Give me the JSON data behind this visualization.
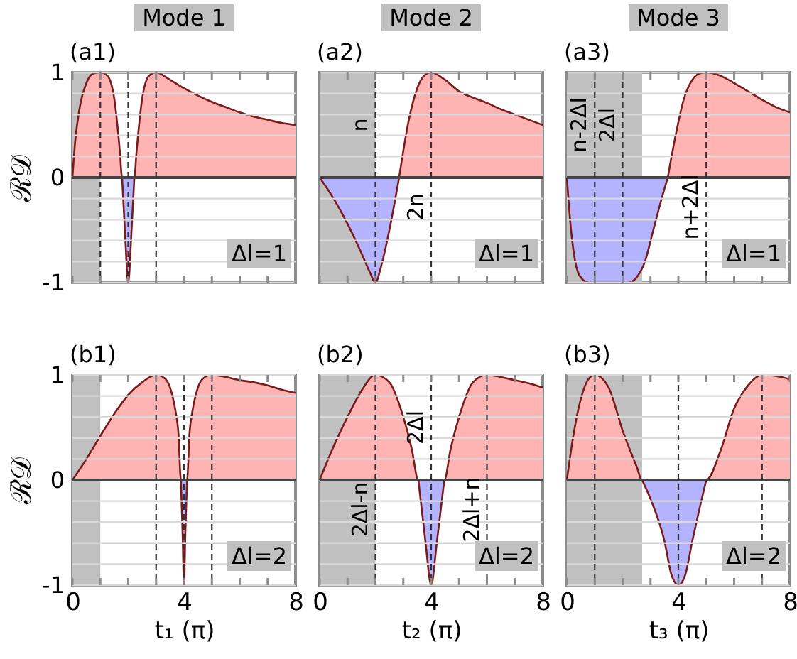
{
  "chart_data": [
    {
      "type": "area",
      "title": "(a1)",
      "subtitle": "Mode 1",
      "ylabel": "ℛ𝒟",
      "tick_labels": "y",
      "grid": "y",
      "xlim": [
        0,
        8
      ],
      "ylim": [
        -1,
        1
      ],
      "xticks": [
        0,
        {
          "value": 1,
          "label": null
        },
        {
          "value": 2,
          "label": null
        },
        {
          "value": 3,
          "label": null
        },
        4,
        {
          "value": 5,
          "label": null
        },
        {
          "value": 6,
          "label": null
        },
        {
          "value": 7,
          "label": null
        },
        8
      ],
      "yticks": [
        -1,
        {
          "value": -0.8,
          "label": null
        },
        {
          "value": -0.6,
          "label": null
        },
        {
          "value": -0.4,
          "label": null
        },
        {
          "value": -0.2,
          "label": null
        },
        0,
        {
          "value": 0.2,
          "label": null
        },
        {
          "value": 0.4,
          "label": null
        },
        {
          "value": 0.6,
          "label": null
        },
        {
          "value": 0.8,
          "label": null
        },
        1
      ],
      "x": [
        0,
        0.1,
        0.25,
        0.5,
        0.75,
        1,
        1.25,
        1.5,
        1.7,
        1.78,
        1.88,
        2,
        2.12,
        2.22,
        2.3,
        2.5,
        2.75,
        3,
        3.5,
        4,
        4.5,
        5,
        5.5,
        6,
        6.5,
        7,
        7.5,
        8
      ],
      "series": [
        {
          "color": "#ffb3b3",
          "values": [
            0,
            0.35,
            0.65,
            0.9,
            0.99,
            1,
            0.97,
            0.75,
            0.25,
            0,
            null,
            null,
            null,
            0,
            0.25,
            0.75,
            0.97,
            1,
            0.93,
            0.85,
            0.78,
            0.72,
            0.67,
            0.62,
            0.58,
            0.55,
            0.52,
            0.5
          ]
        },
        {
          "color": "#b3b3ff",
          "values": [
            null,
            null,
            null,
            null,
            null,
            null,
            null,
            null,
            null,
            0,
            -0.5,
            -1,
            -0.5,
            0,
            null,
            null,
            null,
            null,
            null,
            null,
            null,
            null,
            null,
            null,
            null,
            null,
            null,
            null
          ]
        }
      ],
      "bands": [
        {
          "axis": "x",
          "from": 0,
          "to": 1,
          "color": "#c0c0c0"
        }
      ],
      "ref_lines": [
        {
          "axis": "y",
          "value": 0,
          "color": "#444444",
          "line_style": "solid"
        },
        {
          "axis": "x",
          "value": 1,
          "color": "#333333",
          "line_style": "dashed"
        },
        {
          "axis": "x",
          "value": 2,
          "color": "#333333",
          "line_style": "dashed"
        },
        {
          "axis": "x",
          "value": 3,
          "color": "#333333",
          "line_style": "dashed"
        }
      ],
      "annotations": [
        "Δl=1"
      ]
    },
    {
      "type": "area",
      "title": "(a2)",
      "subtitle": "Mode 2",
      "tick_labels": false,
      "grid": "y",
      "xlim": [
        0,
        8
      ],
      "ylim": [
        -1,
        1
      ],
      "xticks": [
        0,
        {
          "value": 1,
          "label": null
        },
        {
          "value": 2,
          "label": null
        },
        {
          "value": 3,
          "label": null
        },
        4,
        {
          "value": 5,
          "label": null
        },
        {
          "value": 6,
          "label": null
        },
        {
          "value": 7,
          "label": null
        },
        8
      ],
      "yticks": [
        -1,
        {
          "value": -0.8,
          "label": null
        },
        {
          "value": -0.6,
          "label": null
        },
        {
          "value": -0.4,
          "label": null
        },
        {
          "value": -0.2,
          "label": null
        },
        0,
        {
          "value": 0.2,
          "label": null
        },
        {
          "value": 0.4,
          "label": null
        },
        {
          "value": 0.6,
          "label": null
        },
        {
          "value": 0.8,
          "label": null
        },
        1
      ],
      "x": [
        0,
        0.5,
        1,
        1.5,
        1.8,
        2,
        2.2,
        2.5,
        2.85,
        3.2,
        3.5,
        3.75,
        4,
        4.5,
        5,
        5.5,
        6,
        6.5,
        7,
        7.5,
        8
      ],
      "series": [
        {
          "color": "#ffb3b3",
          "values": [
            null,
            null,
            null,
            null,
            null,
            null,
            null,
            null,
            0,
            0.55,
            0.85,
            0.97,
            1,
            0.93,
            0.82,
            0.76,
            0.71,
            0.65,
            0.6,
            0.55,
            0.5
          ]
        },
        {
          "color": "#b3b3ff",
          "values": [
            0,
            -0.2,
            -0.44,
            -0.72,
            -0.9,
            -1,
            -0.85,
            -0.5,
            0,
            null,
            null,
            null,
            null,
            null,
            null,
            null,
            null,
            null,
            null,
            null,
            null
          ]
        }
      ],
      "bands": [
        {
          "axis": "x",
          "from": 0,
          "to": 2,
          "color": "#c0c0c0"
        }
      ],
      "ref_lines": [
        {
          "axis": "y",
          "value": 0,
          "color": "#444444",
          "line_style": "solid"
        },
        {
          "axis": "x",
          "value": 2,
          "color": "#333333",
          "line_style": "dashed",
          "label": "n"
        },
        {
          "axis": "x",
          "value": 4,
          "color": "#333333",
          "line_style": "dashed",
          "label": "2n"
        }
      ],
      "annotations": [
        "Δl=1"
      ]
    },
    {
      "type": "area",
      "title": "(a3)",
      "subtitle": "Mode 3",
      "tick_labels": false,
      "grid": "y",
      "xlim": [
        0,
        8
      ],
      "ylim": [
        -1,
        1
      ],
      "xticks": [
        0,
        {
          "value": 1,
          "label": null
        },
        {
          "value": 2,
          "label": null
        },
        {
          "value": 3,
          "label": null
        },
        4,
        {
          "value": 5,
          "label": null
        },
        {
          "value": 6,
          "label": null
        },
        {
          "value": 7,
          "label": null
        },
        8
      ],
      "yticks": [
        -1,
        {
          "value": -0.8,
          "label": null
        },
        {
          "value": -0.6,
          "label": null
        },
        {
          "value": -0.4,
          "label": null
        },
        {
          "value": -0.2,
          "label": null
        },
        0,
        {
          "value": 0.2,
          "label": null
        },
        {
          "value": 0.4,
          "label": null
        },
        {
          "value": 0.6,
          "label": null
        },
        {
          "value": 0.8,
          "label": null
        },
        1
      ],
      "x": [
        0,
        0.15,
        0.3,
        0.5,
        0.8,
        1.5,
        2.2,
        2.5,
        2.8,
        3.1,
        3.4,
        3.62,
        3.9,
        4.2,
        4.5,
        4.75,
        5,
        5.5,
        6,
        6.5,
        7,
        7.5,
        8
      ],
      "series": [
        {
          "color": "#ffb3b3",
          "values": [
            null,
            null,
            null,
            null,
            null,
            null,
            null,
            null,
            null,
            null,
            null,
            0,
            0.4,
            0.75,
            0.93,
            0.99,
            1,
            0.97,
            0.9,
            0.82,
            0.74,
            0.67,
            0.62
          ]
        },
        {
          "color": "#b3b3ff",
          "values": [
            0,
            -0.5,
            -0.8,
            -0.95,
            -1,
            -1,
            -1,
            -0.95,
            -0.8,
            -0.5,
            -0.2,
            0,
            null,
            null,
            null,
            null,
            null,
            null,
            null,
            null,
            null,
            null,
            null
          ]
        }
      ],
      "bands": [
        {
          "axis": "x",
          "from": 0,
          "to": 2.7,
          "color": "#c0c0c0"
        }
      ],
      "ref_lines": [
        {
          "axis": "y",
          "value": 0,
          "color": "#444444",
          "line_style": "solid"
        },
        {
          "axis": "x",
          "value": 1,
          "color": "#333333",
          "line_style": "dashed",
          "label": "n-2Δl"
        },
        {
          "axis": "x",
          "value": 2,
          "color": "#333333",
          "line_style": "dashed",
          "label": "2Δl"
        },
        {
          "axis": "x",
          "value": 5,
          "color": "#333333",
          "line_style": "dashed",
          "label": "n+2Δl"
        }
      ],
      "annotations": [
        "Δl=1"
      ]
    },
    {
      "type": "area",
      "title": "(b1)",
      "xlabel": "t₁ (π)",
      "ylabel": "ℛ𝒟",
      "grid": "y",
      "xlim": [
        0,
        8
      ],
      "ylim": [
        -1,
        1
      ],
      "xticks": [
        0,
        {
          "value": 1,
          "label": null
        },
        {
          "value": 2,
          "label": null
        },
        {
          "value": 3,
          "label": null
        },
        4,
        {
          "value": 5,
          "label": null
        },
        {
          "value": 6,
          "label": null
        },
        {
          "value": 7,
          "label": null
        },
        8
      ],
      "yticks": [
        -1,
        {
          "value": -0.8,
          "label": null
        },
        {
          "value": -0.6,
          "label": null
        },
        {
          "value": -0.4,
          "label": null
        },
        {
          "value": -0.2,
          "label": null
        },
        0,
        {
          "value": 0.2,
          "label": null
        },
        {
          "value": 0.4,
          "label": null
        },
        {
          "value": 0.6,
          "label": null
        },
        {
          "value": 0.8,
          "label": null
        },
        1
      ],
      "x": [
        0,
        0.5,
        1,
        1.5,
        2,
        2.5,
        3,
        3.3,
        3.5,
        3.7,
        3.8,
        3.89,
        3.95,
        4,
        4.05,
        4.11,
        4.2,
        4.3,
        4.5,
        4.7,
        5,
        5.5,
        6,
        6.5,
        7,
        7.5,
        8
      ],
      "series": [
        {
          "color": "#ffb3b3",
          "values": [
            0,
            0.2,
            0.42,
            0.63,
            0.81,
            0.93,
            1,
            0.97,
            0.88,
            0.65,
            0.45,
            0,
            null,
            null,
            null,
            0,
            0.45,
            0.65,
            0.88,
            0.97,
            1,
            0.98,
            0.95,
            0.93,
            0.9,
            0.86,
            0.83
          ]
        },
        {
          "color": "#b3b3ff",
          "values": [
            null,
            null,
            null,
            null,
            null,
            null,
            null,
            null,
            null,
            null,
            null,
            0,
            -0.5,
            -1,
            -0.5,
            0,
            null,
            null,
            null,
            null,
            null,
            null,
            null,
            null,
            null,
            null,
            null
          ]
        }
      ],
      "bands": [
        {
          "axis": "x",
          "from": 0,
          "to": 1,
          "color": "#c0c0c0"
        }
      ],
      "ref_lines": [
        {
          "axis": "y",
          "value": 0,
          "color": "#444444",
          "line_style": "solid"
        },
        {
          "axis": "x",
          "value": 3,
          "color": "#333333",
          "line_style": "dashed"
        },
        {
          "axis": "x",
          "value": 4,
          "color": "#333333",
          "line_style": "dashed"
        },
        {
          "axis": "x",
          "value": 5,
          "color": "#333333",
          "line_style": "dashed"
        }
      ],
      "annotations": [
        "Δl=2"
      ]
    },
    {
      "type": "area",
      "title": "(b2)",
      "xlabel": "t₂ (π)",
      "tick_labels": "x",
      "grid": "y",
      "xlim": [
        0,
        8
      ],
      "ylim": [
        -1,
        1
      ],
      "xticks": [
        0,
        {
          "value": 1,
          "label": null
        },
        {
          "value": 2,
          "label": null
        },
        {
          "value": 3,
          "label": null
        },
        4,
        {
          "value": 5,
          "label": null
        },
        {
          "value": 6,
          "label": null
        },
        {
          "value": 7,
          "label": null
        },
        8
      ],
      "yticks": [
        -1,
        {
          "value": -0.8,
          "label": null
        },
        {
          "value": -0.6,
          "label": null
        },
        {
          "value": -0.4,
          "label": null
        },
        {
          "value": -0.2,
          "label": null
        },
        0,
        {
          "value": 0.2,
          "label": null
        },
        {
          "value": 0.4,
          "label": null
        },
        {
          "value": 0.6,
          "label": null
        },
        {
          "value": 0.8,
          "label": null
        },
        1
      ],
      "x": [
        0,
        0.5,
        1,
        1.5,
        2,
        2.5,
        3,
        3.3,
        3.54,
        3.8,
        4,
        4.2,
        4.47,
        4.7,
        5,
        5.5,
        6,
        6.5,
        7,
        7.5,
        8
      ],
      "series": [
        {
          "color": "#ffb3b3",
          "values": [
            0,
            0.32,
            0.6,
            0.85,
            1,
            0.93,
            0.6,
            0.3,
            0,
            null,
            null,
            null,
            0,
            0.3,
            0.6,
            0.93,
            1,
            0.98,
            0.95,
            0.92,
            0.88
          ]
        },
        {
          "color": "#b3b3ff",
          "values": [
            null,
            null,
            null,
            null,
            null,
            null,
            null,
            null,
            0,
            -0.6,
            -1,
            -0.6,
            0,
            null,
            null,
            null,
            null,
            null,
            null,
            null,
            null
          ]
        }
      ],
      "bands": [
        {
          "axis": "x",
          "from": 0,
          "to": 2,
          "color": "#c0c0c0"
        }
      ],
      "ref_lines": [
        {
          "axis": "y",
          "value": 0,
          "color": "#444444",
          "line_style": "solid"
        },
        {
          "axis": "x",
          "value": 2,
          "color": "#333333",
          "line_style": "dashed",
          "label": "2Δl-n"
        },
        {
          "axis": "x",
          "value": 4,
          "color": "#333333",
          "line_style": "dashed",
          "label": "2Δl"
        },
        {
          "axis": "x",
          "value": 6,
          "color": "#333333",
          "line_style": "dashed",
          "label": "2Δl+n"
        }
      ],
      "annotations": [
        "Δl=2"
      ]
    },
    {
      "type": "area",
      "title": "(b3)",
      "xlabel": "t₃ (π)",
      "tick_labels": "x",
      "grid": "y",
      "xlim": [
        0,
        8
      ],
      "ylim": [
        -1,
        1
      ],
      "xticks": [
        0,
        {
          "value": 1,
          "label": null
        },
        {
          "value": 2,
          "label": null
        },
        {
          "value": 3,
          "label": null
        },
        4,
        {
          "value": 5,
          "label": null
        },
        {
          "value": 6,
          "label": null
        },
        {
          "value": 7,
          "label": null
        },
        8
      ],
      "yticks": [
        -1,
        {
          "value": -0.8,
          "label": null
        },
        {
          "value": -0.6,
          "label": null
        },
        {
          "value": -0.4,
          "label": null
        },
        {
          "value": -0.2,
          "label": null
        },
        0,
        {
          "value": 0.2,
          "label": null
        },
        {
          "value": 0.4,
          "label": null
        },
        {
          "value": 0.6,
          "label": null
        },
        {
          "value": 0.8,
          "label": null
        },
        1
      ],
      "x": [
        0,
        0.25,
        0.5,
        0.75,
        1,
        1.5,
        2,
        2.5,
        2.7,
        3,
        3.5,
        3.75,
        4,
        4.25,
        4.5,
        4.75,
        5,
        5.5,
        6,
        6.5,
        7,
        7.5,
        8
      ],
      "series": [
        {
          "color": "#ffb3b3",
          "values": [
            0,
            0.45,
            0.77,
            0.95,
            1,
            0.88,
            0.47,
            0.13,
            0,
            null,
            null,
            null,
            null,
            null,
            null,
            null,
            0,
            0.27,
            0.68,
            0.9,
            1,
            0.99,
            0.96
          ]
        },
        {
          "color": "#b3b3ff",
          "values": [
            null,
            null,
            null,
            null,
            null,
            null,
            null,
            null,
            0,
            -0.18,
            -0.58,
            -0.9,
            -1,
            -0.9,
            -0.58,
            -0.28,
            0,
            null,
            null,
            null,
            null,
            null,
            null
          ]
        }
      ],
      "bands": [
        {
          "axis": "x",
          "from": 0,
          "to": 2.7,
          "color": "#c0c0c0"
        }
      ],
      "ref_lines": [
        {
          "axis": "y",
          "value": 0,
          "color": "#444444",
          "line_style": "solid"
        },
        {
          "axis": "x",
          "value": 1,
          "color": "#333333",
          "line_style": "dashed"
        },
        {
          "axis": "x",
          "value": 4,
          "color": "#333333",
          "line_style": "dashed"
        },
        {
          "axis": "x",
          "value": 7,
          "color": "#333333",
          "line_style": "dashed"
        }
      ],
      "annotations": [
        "Δl=2"
      ]
    }
  ]
}
